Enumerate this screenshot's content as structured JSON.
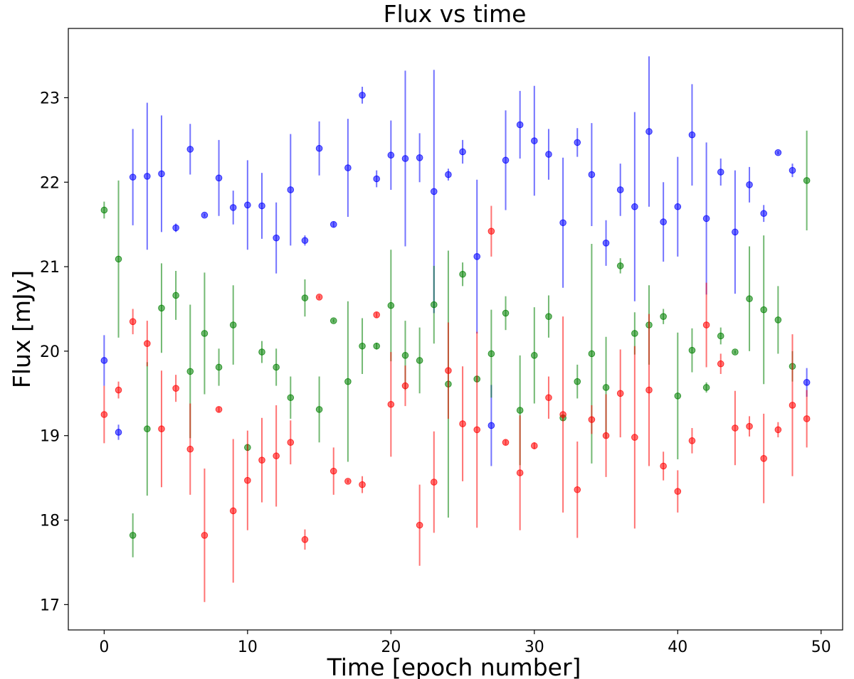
{
  "chart_data": {
    "type": "scatter",
    "title": "Flux vs time",
    "xlabel": "Time [epoch number]",
    "ylabel": "Flux [mJy]",
    "xlim": [
      -2.5,
      51.5
    ],
    "ylim": [
      16.7,
      23.82
    ],
    "xticks": [
      0,
      10,
      20,
      30,
      40,
      50
    ],
    "yticks": [
      17,
      18,
      19,
      20,
      21,
      22,
      23
    ],
    "grid": false,
    "legend": false,
    "x": [
      0,
      1,
      2,
      3,
      4,
      5,
      6,
      7,
      8,
      9,
      10,
      11,
      12,
      13,
      14,
      15,
      16,
      17,
      18,
      19,
      20,
      21,
      22,
      23,
      24,
      25,
      26,
      27,
      28,
      29,
      30,
      31,
      32,
      33,
      34,
      35,
      36,
      37,
      38,
      39,
      40,
      41,
      42,
      43,
      44,
      45,
      46,
      47,
      48,
      49
    ],
    "series": [
      {
        "color": "#0000ff",
        "values": [
          19.89,
          19.04,
          22.06,
          22.07,
          22.1,
          21.46,
          22.39,
          21.61,
          22.05,
          21.7,
          21.73,
          21.72,
          21.34,
          21.91,
          21.31,
          22.4,
          21.5,
          22.17,
          23.03,
          22.04,
          22.32,
          22.28,
          22.29,
          21.89,
          22.09,
          22.36,
          21.12,
          19.12,
          22.26,
          22.68,
          22.49,
          22.33,
          21.52,
          22.47,
          22.09,
          21.28,
          21.91,
          21.71,
          22.6,
          21.53,
          21.71,
          22.56,
          21.57,
          22.12,
          21.41,
          21.97,
          21.63,
          22.35,
          22.14,
          19.63
        ],
        "errors": [
          0.3,
          0.09,
          0.57,
          0.87,
          0.69,
          0.05,
          0.3,
          0.02,
          0.45,
          0.2,
          0.53,
          0.39,
          0.42,
          0.66,
          0.06,
          0.32,
          0.03,
          0.58,
          0.1,
          0.1,
          0.41,
          1.04,
          0.29,
          1.44,
          0.07,
          0.14,
          0.91,
          0.48,
          0.59,
          0.4,
          0.65,
          0.3,
          0.77,
          0.17,
          0.61,
          0.27,
          0.31,
          1.12,
          0.89,
          0.47,
          0.59,
          0.6,
          0.9,
          0.16,
          0.73,
          0.21,
          0.1,
          0.02,
          0.08,
          0.17
        ]
      },
      {
        "color": "#008000",
        "values": [
          21.67,
          21.09,
          17.82,
          19.08,
          20.51,
          20.66,
          19.76,
          20.21,
          19.81,
          20.31,
          18.86,
          19.99,
          19.81,
          19.45,
          20.63,
          19.31,
          20.36,
          19.64,
          20.06,
          20.06,
          20.54,
          19.95,
          19.89,
          20.55,
          19.61,
          20.91,
          19.67,
          19.97,
          20.45,
          19.3,
          19.95,
          20.41,
          19.21,
          19.64,
          19.97,
          19.57,
          21.01,
          20.21,
          20.31,
          20.41,
          19.47,
          20.01,
          19.57,
          20.18,
          19.99,
          20.62,
          20.49,
          20.37,
          19.82,
          22.02
        ],
        "errors": [
          0.1,
          0.93,
          0.26,
          0.79,
          0.53,
          0.29,
          0.79,
          0.72,
          0.22,
          0.47,
          0.04,
          0.13,
          0.22,
          0.25,
          0.22,
          0.39,
          0.02,
          0.95,
          0.33,
          0.04,
          0.66,
          0.41,
          0.39,
          0.46,
          1.58,
          0.14,
          0.04,
          0.52,
          0.2,
          0.65,
          0.57,
          0.25,
          0.04,
          0.2,
          1.3,
          0.6,
          0.09,
          0.25,
          0.47,
          0.09,
          0.75,
          0.26,
          0.06,
          0.1,
          0.02,
          0.62,
          0.88,
          0.4,
          0.18,
          0.59
        ]
      },
      {
        "color": "#ff0000",
        "values": [
          19.25,
          19.54,
          20.35,
          20.09,
          19.08,
          19.56,
          18.84,
          17.82,
          19.31,
          18.11,
          18.47,
          18.71,
          18.76,
          18.92,
          17.77,
          20.64,
          18.58,
          18.46,
          18.42,
          20.43,
          19.37,
          19.59,
          17.94,
          18.45,
          19.77,
          19.14,
          19.07,
          21.42,
          18.92,
          18.56,
          18.88,
          19.45,
          19.25,
          18.36,
          19.19,
          19.0,
          19.5,
          18.98,
          19.54,
          18.64,
          18.34,
          18.94,
          20.31,
          19.85,
          19.09,
          19.11,
          18.73,
          19.07,
          19.36,
          19.2
        ],
        "errors": [
          0.34,
          0.1,
          0.15,
          0.27,
          0.69,
          0.16,
          0.54,
          0.79,
          0.03,
          0.85,
          0.59,
          0.5,
          0.6,
          0.26,
          0.12,
          0.02,
          0.28,
          0.02,
          0.1,
          0.03,
          0.62,
          0.24,
          0.48,
          0.6,
          0.57,
          0.68,
          1.16,
          0.3,
          0.03,
          0.68,
          0.04,
          0.25,
          1.16,
          0.57,
          0.17,
          0.49,
          0.52,
          1.08,
          0.9,
          0.17,
          0.25,
          0.15,
          0.5,
          0.12,
          0.44,
          0.12,
          0.53,
          0.09,
          0.84,
          0.34
        ]
      }
    ]
  }
}
